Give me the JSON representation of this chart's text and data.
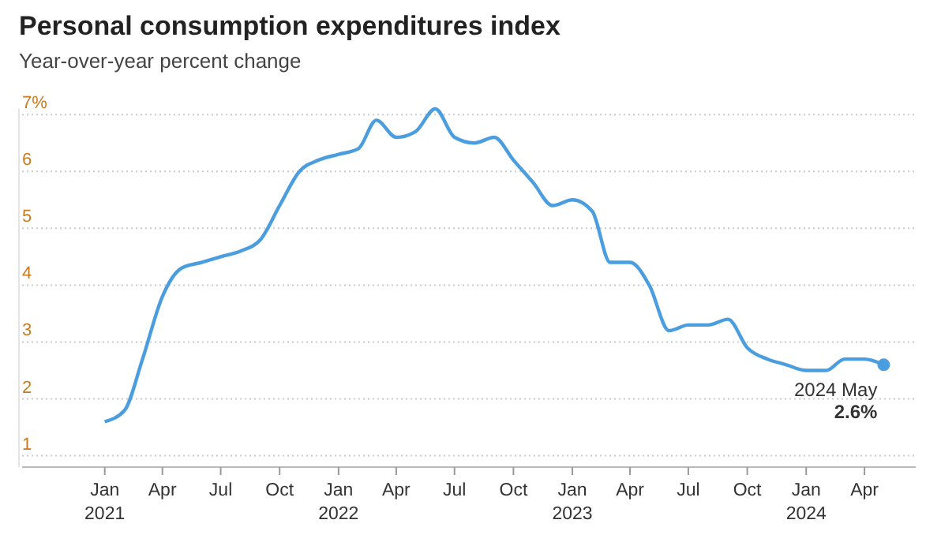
{
  "chart_data": {
    "type": "line",
    "title": "Personal consumption expenditures index",
    "subtitle": "Year-over-year percent change",
    "x": [
      "2021-01",
      "2021-02",
      "2021-03",
      "2021-04",
      "2021-05",
      "2021-06",
      "2021-07",
      "2021-08",
      "2021-09",
      "2021-10",
      "2021-11",
      "2021-12",
      "2022-01",
      "2022-02",
      "2022-03",
      "2022-04",
      "2022-05",
      "2022-06",
      "2022-07",
      "2022-08",
      "2022-09",
      "2022-10",
      "2022-11",
      "2022-12",
      "2023-01",
      "2023-02",
      "2023-03",
      "2023-04",
      "2023-05",
      "2023-06",
      "2023-07",
      "2023-08",
      "2023-09",
      "2023-10",
      "2023-11",
      "2023-12",
      "2024-01",
      "2024-02",
      "2024-03",
      "2024-04",
      "2024-05"
    ],
    "series": [
      {
        "color": "#4a9ee0",
        "values": [
          1.6,
          1.8,
          2.7,
          3.8,
          4.3,
          4.4,
          4.5,
          4.6,
          4.8,
          5.4,
          6.0,
          6.2,
          6.3,
          6.4,
          6.9,
          6.6,
          6.7,
          7.1,
          6.6,
          6.5,
          6.6,
          6.2,
          5.8,
          5.4,
          5.5,
          5.3,
          4.4,
          4.4,
          4.0,
          3.2,
          3.3,
          3.3,
          3.4,
          2.9,
          2.7,
          2.6,
          2.5,
          2.5,
          2.7,
          2.7,
          2.6
        ]
      }
    ],
    "xlim": [
      "2020-08-25",
      "2024-06-20"
    ],
    "xticks": [
      {
        "value": "2021-01",
        "label": "Jan 2021"
      },
      {
        "value": "2021-04",
        "label": "Apr"
      },
      {
        "value": "2021-07",
        "label": "Jul"
      },
      {
        "value": "2021-10",
        "label": "Oct"
      },
      {
        "value": "2022-01",
        "label": "Jan 2022"
      },
      {
        "value": "2022-04",
        "label": "Apr"
      },
      {
        "value": "2022-07",
        "label": "Jul"
      },
      {
        "value": "2022-10",
        "label": "Oct"
      },
      {
        "value": "2023-01",
        "label": "Jan 2023"
      },
      {
        "value": "2023-04",
        "label": "Apr"
      },
      {
        "value": "2023-07",
        "label": "Jul"
      },
      {
        "value": "2023-10",
        "label": "Oct"
      },
      {
        "value": "2024-01",
        "label": "Jan 2024"
      },
      {
        "value": "2024-04",
        "label": "Apr"
      }
    ],
    "yticks": [
      1,
      2,
      3,
      4,
      5,
      6,
      {
        "value": 7,
        "label": "7%"
      }
    ],
    "ylim": [
      0.8,
      7.1
    ],
    "grid": "y",
    "marker": "none",
    "line_style": "solid",
    "annotations": [
      {
        "text": "2024 May",
        "x": "2024-05",
        "y": 2.6
      },
      {
        "text": "2.6%",
        "x": "2024-05",
        "y": 2.6
      }
    ]
  }
}
